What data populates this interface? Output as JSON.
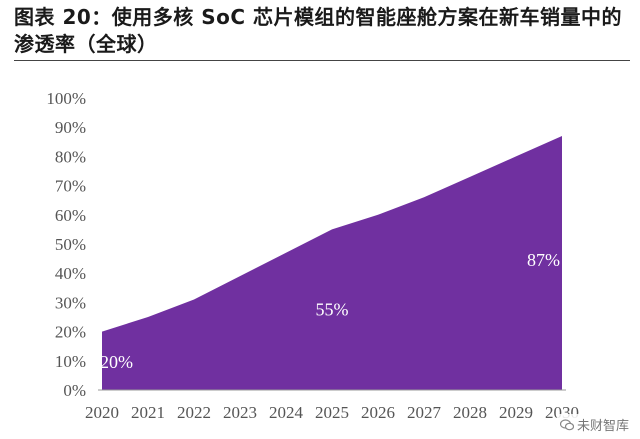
{
  "title": "图表 20：使用多核 SoC 芯片模组的智能座舱方案在新车销量中的渗透率（全球）",
  "watermark": "未财智库",
  "chart_data": {
    "type": "area",
    "x": [
      "2020",
      "2021",
      "2022",
      "2023",
      "2024",
      "2025",
      "2026",
      "2027",
      "2028",
      "2029",
      "2030"
    ],
    "values": [
      20,
      25,
      31,
      39,
      47,
      55,
      60,
      66,
      73,
      80,
      87
    ],
    "y_ticks": [
      "0%",
      "10%",
      "20%",
      "30%",
      "40%",
      "50%",
      "60%",
      "70%",
      "80%",
      "90%",
      "100%"
    ],
    "x_ticks": [
      "2020",
      "2021",
      "2022",
      "2023",
      "2024",
      "2025",
      "2026",
      "2027",
      "2028",
      "2029",
      "2030"
    ],
    "ylim": [
      0,
      100
    ],
    "grid": false,
    "color": "#7030a0",
    "data_labels": [
      {
        "x": "2020",
        "text": "20%"
      },
      {
        "x": "2025",
        "text": "55%"
      },
      {
        "x": "2030",
        "text": "87%"
      }
    ]
  }
}
